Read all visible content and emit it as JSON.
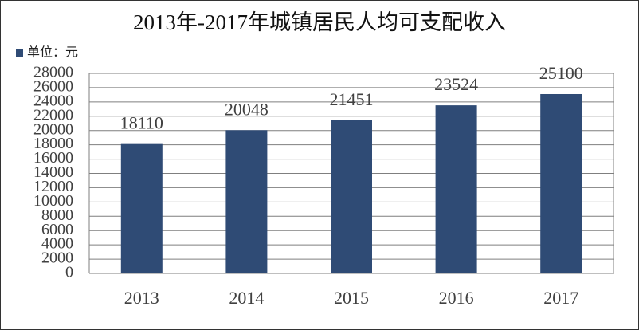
{
  "chart_data": {
    "type": "bar",
    "title": "2013年-2017年城镇居民人均可支配收入",
    "categories": [
      "2013",
      "2014",
      "2015",
      "2016",
      "2017"
    ],
    "series": [
      {
        "name": "单位：元",
        "color": "#2f4b75",
        "values": [
          18110,
          20048,
          21451,
          23524,
          25100
        ]
      }
    ],
    "ylim": [
      0,
      28000
    ],
    "yticks": [
      0,
      2000,
      4000,
      6000,
      8000,
      10000,
      12000,
      14000,
      16000,
      18000,
      20000,
      22000,
      24000,
      26000,
      28000
    ],
    "grid": true,
    "legend": "top-left"
  }
}
